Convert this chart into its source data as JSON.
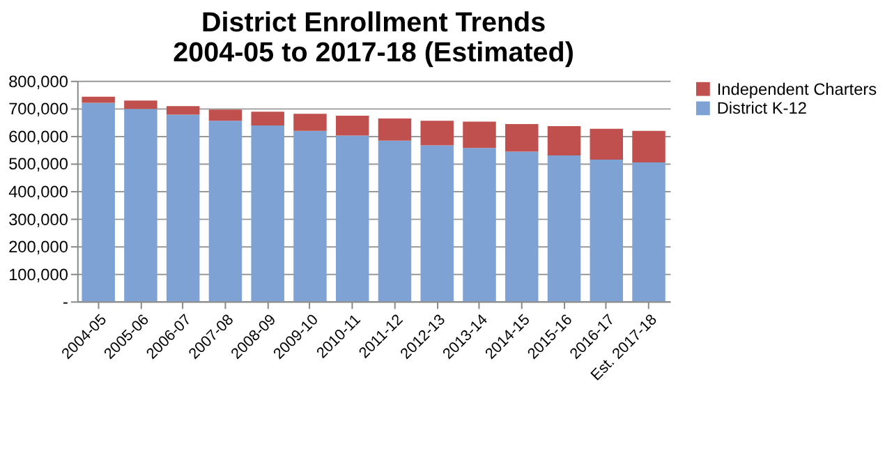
{
  "chart_data": {
    "type": "bar",
    "title": [
      "District Enrollment Trends",
      "2004-05 to 2017-18 (Estimated)"
    ],
    "categories": [
      "2004-05",
      "2005-06",
      "2006-07",
      "2007-08",
      "2008-09",
      "2009-10",
      "2010-11",
      "2011-12",
      "2012-13",
      "2013-14",
      "2014-15",
      "2015-16",
      "2016-17",
      "Est. 2017-18"
    ],
    "stacked": true,
    "series": [
      {
        "name": "District K-12",
        "color": "#7ea2d4",
        "values": [
          720000,
          698000,
          677000,
          655000,
          638000,
          618000,
          601000,
          583000,
          566000,
          556000,
          543000,
          529000,
          514000,
          504000
        ]
      },
      {
        "name": "Independent Charters",
        "color": "#c0504d",
        "values": [
          22000,
          30000,
          31000,
          40000,
          50000,
          62000,
          72000,
          80000,
          89000,
          96000,
          100000,
          106000,
          112000,
          114000
        ]
      }
    ],
    "ylim": [
      0,
      800000
    ],
    "yticks": [
      {
        "value": 0,
        "label": "-"
      },
      {
        "value": 100000,
        "label": "100,000"
      },
      {
        "value": 200000,
        "label": "200,000"
      },
      {
        "value": 300000,
        "label": "300,000"
      },
      {
        "value": 400000,
        "label": "400,000"
      },
      {
        "value": 500000,
        "label": "500,000"
      },
      {
        "value": 600000,
        "label": "600,000"
      },
      {
        "value": 700000,
        "label": "700,000"
      },
      {
        "value": 800000,
        "label": "800,000"
      }
    ],
    "grid": "y",
    "legend": "right"
  }
}
